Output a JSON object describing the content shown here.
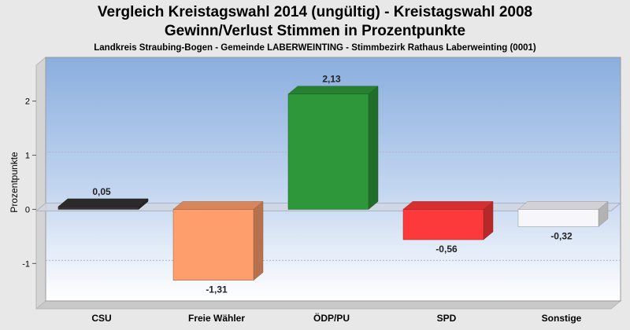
{
  "chart_data": {
    "type": "bar",
    "title": "Vergleich Kreistagswahl 2014 (ungültig) - Kreistagswahl 2008",
    "subtitle": "Gewinn/Verlust Stimmen in Prozentpunkte",
    "caption": "Landkreis Straubing-Bogen - Gemeinde LABERWEINTING - Stimmbezirk Rathaus Laberweinting (0001)",
    "ylabel": "Prozentpunkte",
    "ylim": [
      -1.75,
      2.75
    ],
    "yticks": [
      -1,
      0,
      1,
      2
    ],
    "grid": true,
    "categories": [
      "CSU",
      "Freie Wähler",
      "ÖDP/PU",
      "SPD",
      "Sonstige"
    ],
    "values": [
      0.05,
      -1.31,
      2.13,
      -0.56,
      -0.32
    ],
    "value_labels": [
      "0,05",
      "-1,31",
      "2,13",
      "-0,56",
      "-0,32"
    ],
    "colors": [
      "#333333",
      "#fd9e6c",
      "#2e973a",
      "#fc393b",
      "#f7f7f9"
    ]
  }
}
